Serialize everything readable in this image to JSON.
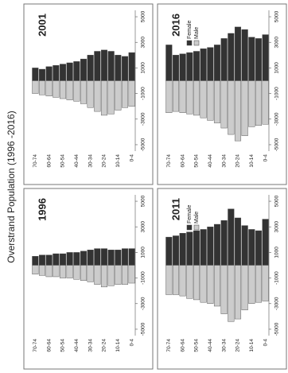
{
  "title": "Overstrand Population (1996 -2016)",
  "chart_data": [
    {
      "type": "pyramid",
      "title": "1996",
      "categories": [
        "70-74",
        null,
        "60-64",
        null,
        "50-54",
        null,
        "40-44",
        null,
        "30-34",
        null,
        "20-24",
        null,
        "10-14",
        null,
        "0-4"
      ],
      "series": [
        {
          "name": "Female",
          "color": "#333333",
          "values": [
            700,
            800,
            800,
            900,
            900,
            1000,
            1000,
            1100,
            1200,
            1300,
            1300,
            1200,
            1200,
            1300,
            1300
          ]
        },
        {
          "name": "Male",
          "color": "#cccccc",
          "values": [
            -700,
            -800,
            -900,
            -900,
            -1000,
            -1000,
            -1100,
            -1200,
            -1300,
            -1500,
            -1700,
            -1600,
            -1500,
            -1500,
            -1400
          ]
        }
      ],
      "xlim": [
        -5500,
        5500
      ],
      "xticks": [
        -5000,
        -3000,
        -1000,
        1000,
        3000,
        5000
      ],
      "legend": false
    },
    {
      "type": "pyramid",
      "title": "2001",
      "categories": [
        "70-74",
        null,
        "60-64",
        null,
        "50-54",
        null,
        "40-44",
        null,
        "30-34",
        null,
        "20-24",
        null,
        "10-14",
        null,
        "0-4"
      ],
      "series": [
        {
          "name": "Female",
          "color": "#333333",
          "values": [
            1000,
            900,
            1100,
            1200,
            1300,
            1400,
            1500,
            1700,
            2000,
            2300,
            2400,
            2300,
            2000,
            1900,
            2200
          ]
        },
        {
          "name": "Male",
          "color": "#cccccc",
          "values": [
            -1000,
            -1100,
            -1200,
            -1300,
            -1400,
            -1500,
            -1600,
            -1800,
            -2100,
            -2400,
            -2700,
            -2600,
            -2300,
            -2100,
            -2000
          ]
        }
      ],
      "xlim": [
        -5500,
        5500
      ],
      "xticks": [
        -5000,
        -3000,
        -1000,
        1000,
        3000,
        5000
      ],
      "legend": false
    },
    {
      "type": "pyramid",
      "title": "2011",
      "categories": [
        "70-74",
        null,
        "60-64",
        null,
        "50-54",
        null,
        "40-44",
        null,
        "30-34",
        null,
        "20-24",
        null,
        "10-14",
        null,
        "0-4"
      ],
      "series": [
        {
          "name": "Female",
          "color": "#333333",
          "values": [
            2200,
            2300,
            2500,
            2600,
            2700,
            2800,
            3000,
            3200,
            3500,
            4400,
            3700,
            3100,
            2800,
            2700,
            3600
          ]
        },
        {
          "name": "Male",
          "color": "#cccccc",
          "values": [
            -2300,
            -2300,
            -2400,
            -2600,
            -2700,
            -2900,
            -3000,
            -3200,
            -3800,
            -4400,
            -4200,
            -3500,
            -3000,
            -2900,
            -2800
          ]
        }
      ],
      "xlim": [
        -5500,
        5500
      ],
      "xticks": [
        -5000,
        -3000,
        -1000,
        1000,
        3000,
        5000
      ],
      "legend": true
    },
    {
      "type": "pyramid",
      "title": "2016",
      "categories": [
        "70-74",
        null,
        "60-64",
        null,
        "50-54",
        null,
        "40-44",
        null,
        "30-34",
        null,
        "20-24",
        null,
        "10-14",
        null,
        "0-4"
      ],
      "series": [
        {
          "name": "Female",
          "color": "#333333",
          "values": [
            2800,
            2000,
            2100,
            2200,
            2300,
            2500,
            2600,
            2800,
            3300,
            3700,
            4200,
            4000,
            3400,
            3300,
            3600
          ]
        },
        {
          "name": "Male",
          "color": "#cccccc",
          "values": [
            -2500,
            -2400,
            -2500,
            -2600,
            -2700,
            -2900,
            -3100,
            -3300,
            -3700,
            -4200,
            -4700,
            -4300,
            -3600,
            -3500,
            -3400
          ]
        }
      ],
      "xlim": [
        -5500,
        5500
      ],
      "xticks": [
        -5000,
        -3000,
        -1000,
        1000,
        3000,
        5000
      ],
      "legend": true
    }
  ]
}
